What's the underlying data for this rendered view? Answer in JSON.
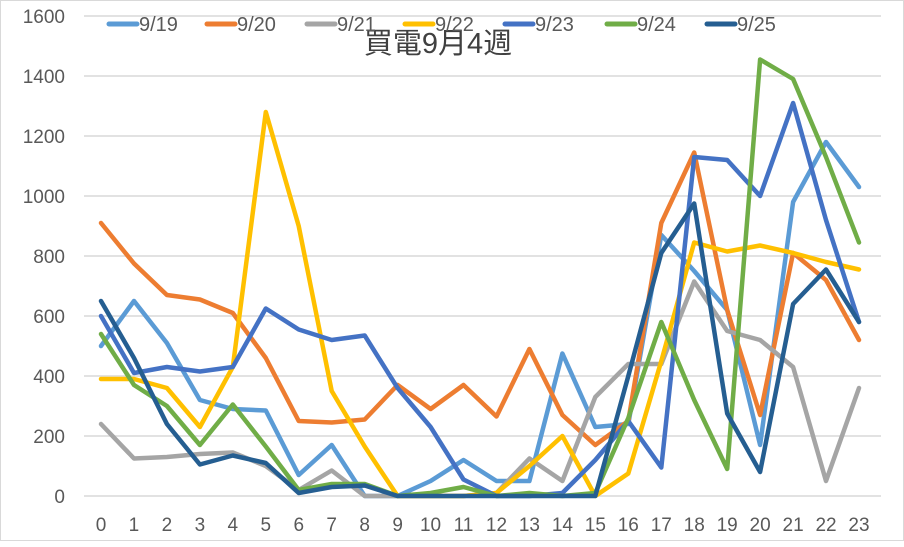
{
  "chart_data": {
    "type": "line",
    "title": "買電9月4週",
    "xlabel": "",
    "ylabel": "",
    "ylim": [
      0,
      1600
    ],
    "yticks": [
      0,
      200,
      400,
      600,
      800,
      1000,
      1200,
      1400,
      1600
    ],
    "grid": true,
    "legend_position": "top",
    "categories": [
      "0",
      "1",
      "2",
      "3",
      "4",
      "5",
      "6",
      "7",
      "8",
      "9",
      "10",
      "11",
      "12",
      "13",
      "14",
      "15",
      "16",
      "17",
      "18",
      "19",
      "20",
      "21",
      "22",
      "23"
    ],
    "series": [
      {
        "name": "9/19",
        "color": "#5B9BD5",
        "values": [
          500,
          650,
          510,
          320,
          290,
          285,
          70,
          170,
          0,
          0,
          50,
          120,
          50,
          50,
          475,
          230,
          240,
          870,
          750,
          620,
          170,
          980,
          1180,
          1030
        ]
      },
      {
        "name": "9/20",
        "color": "#ED7D31",
        "values": [
          910,
          775,
          670,
          655,
          610,
          460,
          250,
          245,
          255,
          370,
          290,
          370,
          265,
          490,
          270,
          170,
          250,
          910,
          1145,
          620,
          270,
          810,
          720,
          520
        ]
      },
      {
        "name": "9/21",
        "color": "#A5A5A5",
        "values": [
          240,
          125,
          130,
          140,
          145,
          100,
          20,
          85,
          0,
          0,
          0,
          0,
          10,
          125,
          50,
          330,
          440,
          440,
          715,
          550,
          520,
          430,
          50,
          360
        ]
      },
      {
        "name": "9/22",
        "color": "#FFC000",
        "values": [
          390,
          390,
          360,
          230,
          430,
          1280,
          900,
          350,
          165,
          0,
          0,
          0,
          10,
          100,
          200,
          0,
          75,
          450,
          845,
          815,
          835,
          810,
          780,
          755
        ]
      },
      {
        "name": "9/23",
        "color": "#4472C4",
        "values": [
          600,
          410,
          430,
          415,
          430,
          625,
          555,
          520,
          535,
          360,
          230,
          55,
          0,
          0,
          10,
          120,
          250,
          95,
          1130,
          1120,
          1000,
          1310,
          920,
          580
        ]
      },
      {
        "name": "9/24",
        "color": "#70AD47",
        "values": [
          540,
          370,
          300,
          170,
          305,
          165,
          20,
          40,
          40,
          0,
          10,
          30,
          0,
          10,
          0,
          10,
          260,
          580,
          320,
          90,
          1455,
          1390,
          1130,
          845
        ]
      },
      {
        "name": "9/25",
        "color": "#255E91",
        "values": [
          650,
          460,
          240,
          105,
          135,
          110,
          10,
          30,
          35,
          0,
          0,
          0,
          0,
          0,
          0,
          0,
          400,
          810,
          975,
          275,
          80,
          640,
          755,
          580
        ]
      }
    ]
  }
}
